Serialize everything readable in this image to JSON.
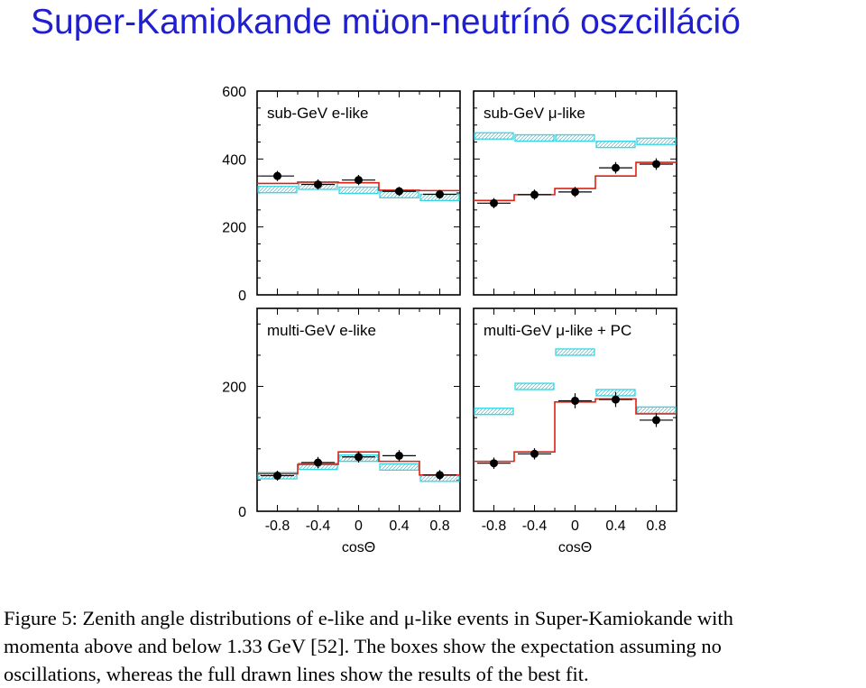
{
  "slide_title": "Super-Kamiokande müon-neutrínó oszcilláció",
  "caption": {
    "line1": "Figure 5: Zenith angle distributions of e-like and μ-like events in Super-Kamiokande with",
    "line2": "momenta above and below 1.33 GeV [52]. The boxes show the expectation assuming no",
    "line3": "oscillations, whereas the full drawn lines show the results of the best fit."
  },
  "colors": {
    "title": "#1f1fd0",
    "expectation_box": "#34d6e6",
    "best_fit": "#e02010",
    "data": "#000000"
  },
  "chart_data": [
    {
      "type": "histogram",
      "title": "sub-GeV e-like",
      "xlabel": "",
      "x_bin_edges": [
        -1,
        -0.6,
        -0.2,
        0.2,
        0.6,
        1
      ],
      "xlim": [
        -1,
        1
      ],
      "ylim": [
        0,
        600
      ],
      "yticks": [
        0,
        200,
        400,
        600
      ],
      "xticks": [],
      "data_points": [
        {
          "x": -0.8,
          "y": 350,
          "err": 15
        },
        {
          "x": -0.4,
          "y": 325,
          "err": 15
        },
        {
          "x": 0,
          "y": 338,
          "err": 15
        },
        {
          "x": 0.4,
          "y": 305,
          "err": 13
        },
        {
          "x": 0.8,
          "y": 296,
          "err": 13
        }
      ],
      "no_oscillation_expectation": [
        310,
        320,
        308,
        295,
        287
      ],
      "best_fit": [
        328,
        332,
        330,
        308,
        307
      ]
    },
    {
      "type": "histogram",
      "title": "sub-GeV μ-like",
      "xlabel": "",
      "x_bin_edges": [
        -1,
        -0.6,
        -0.2,
        0.2,
        0.6,
        1
      ],
      "xlim": [
        -1,
        1
      ],
      "ylim": [
        0,
        600
      ],
      "yticks": [],
      "xticks": [],
      "data_points": [
        {
          "x": -0.8,
          "y": 270,
          "err": 15
        },
        {
          "x": -0.4,
          "y": 295,
          "err": 15
        },
        {
          "x": 0,
          "y": 303,
          "err": 15
        },
        {
          "x": 0.4,
          "y": 374,
          "err": 17
        },
        {
          "x": 0.8,
          "y": 385,
          "err": 17
        }
      ],
      "no_oscillation_expectation": [
        468,
        462,
        462,
        443,
        452
      ],
      "best_fit": [
        278,
        295,
        313,
        350,
        390
      ]
    },
    {
      "type": "histogram",
      "title": "multi-GeV e-like",
      "xlabel": "cosΘ",
      "x_bin_edges": [
        -1,
        -0.6,
        -0.2,
        0.2,
        0.6,
        1
      ],
      "xlim": [
        -1,
        1
      ],
      "ylim": [
        0,
        325
      ],
      "yticks": [
        0,
        200
      ],
      "xticks": [
        "-0.8",
        "-0.4",
        "0",
        "0.4",
        "0.8"
      ],
      "data_points": [
        {
          "x": -0.8,
          "y": 57,
          "err": 8
        },
        {
          "x": -0.4,
          "y": 78,
          "err": 9
        },
        {
          "x": 0,
          "y": 87,
          "err": 9
        },
        {
          "x": 0.4,
          "y": 89,
          "err": 9
        },
        {
          "x": 0.8,
          "y": 58,
          "err": 8
        }
      ],
      "no_oscillation_expectation": [
        57,
        72,
        85,
        71,
        53
      ],
      "best_fit": [
        60,
        75,
        95,
        80,
        58
      ]
    },
    {
      "type": "histogram",
      "title": "multi-GeV μ-like + PC",
      "xlabel": "cosΘ",
      "x_bin_edges": [
        -1,
        -0.6,
        -0.2,
        0.2,
        0.6,
        1
      ],
      "xlim": [
        -1,
        1
      ],
      "ylim": [
        0,
        325
      ],
      "yticks": [],
      "xticks": [
        "-0.8",
        "-0.4",
        "0",
        "0.4",
        "0.8"
      ],
      "data_points": [
        {
          "x": -0.8,
          "y": 77,
          "err": 9
        },
        {
          "x": -0.4,
          "y": 92,
          "err": 9
        },
        {
          "x": 0,
          "y": 177,
          "err": 12
        },
        {
          "x": 0.4,
          "y": 179,
          "err": 12
        },
        {
          "x": 0.8,
          "y": 146,
          "err": 11
        }
      ],
      "no_oscillation_expectation": [
        160,
        200,
        255,
        190,
        162
      ],
      "best_fit": [
        80,
        95,
        175,
        180,
        156
      ]
    }
  ]
}
